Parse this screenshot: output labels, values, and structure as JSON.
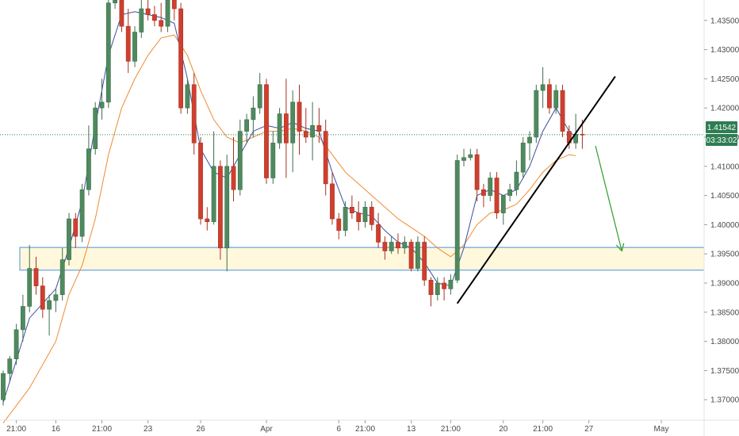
{
  "colors": {
    "up": "#4f8a5f",
    "down": "#cf3f2f",
    "ma_fast": "#3b4fa0",
    "ma_slow": "#f08a30",
    "zone_fill": "#fff8dc",
    "zone_border": "#4a90e2",
    "price_line": "#2e7d52",
    "trendline": "#000000",
    "arrow": "#3aa33a"
  },
  "chart_data": {
    "type": "candlestick",
    "symbol_price_label": "1.41542",
    "countdown_label": "03:33:02",
    "last_price": 1.41542,
    "ylim": [
      1.3665,
      1.4385
    ],
    "yticks": [
      "1.43500",
      "1.43000",
      "1.42500",
      "1.42000",
      "1.41500",
      "1.41000",
      "1.40500",
      "1.40000",
      "1.39500",
      "1.39000",
      "1.38500",
      "1.38000",
      "1.37500",
      "1.37000"
    ],
    "xticks": [
      {
        "label": "21:00",
        "index": 2
      },
      {
        "label": "16",
        "index": 8
      },
      {
        "label": "21:00",
        "index": 15
      },
      {
        "label": "23",
        "index": 22
      },
      {
        "label": "26",
        "index": 30
      },
      {
        "label": "Apr",
        "index": 40
      },
      {
        "label": "6",
        "index": 51
      },
      {
        "label": "21:00",
        "index": 55
      },
      {
        "label": "13",
        "index": 62
      },
      {
        "label": "21:00",
        "index": 68
      },
      {
        "label": "20",
        "index": 76
      },
      {
        "label": "21:00",
        "index": 82
      },
      {
        "label": "27",
        "index": 89
      },
      {
        "label": "May",
        "index": 100
      }
    ],
    "candles": [
      [
        1.37,
        1.375,
        1.369,
        1.3745
      ],
      [
        1.3745,
        1.3775,
        1.373,
        1.377
      ],
      [
        1.377,
        1.383,
        1.376,
        1.382
      ],
      [
        1.382,
        1.388,
        1.38,
        1.386
      ],
      [
        1.386,
        1.3965,
        1.385,
        1.3925
      ],
      [
        1.3925,
        1.3945,
        1.388,
        1.3895
      ],
      [
        1.3895,
        1.391,
        1.384,
        1.3855
      ],
      [
        1.3855,
        1.388,
        1.381,
        1.387
      ],
      [
        1.387,
        1.389,
        1.385,
        1.388
      ],
      [
        1.388,
        1.396,
        1.387,
        1.394
      ],
      [
        1.394,
        1.402,
        1.393,
        1.401
      ],
      [
        1.401,
        1.402,
        1.396,
        1.398
      ],
      [
        1.398,
        1.407,
        1.397,
        1.406
      ],
      [
        1.406,
        1.417,
        1.405,
        1.413
      ],
      [
        1.413,
        1.421,
        1.412,
        1.42
      ],
      [
        1.42,
        1.425,
        1.418,
        1.421
      ],
      [
        1.421,
        1.44,
        1.42,
        1.438
      ],
      [
        1.438,
        1.44,
        1.437,
        1.4385
      ],
      [
        1.4385,
        1.4395,
        1.433,
        1.434
      ],
      [
        1.434,
        1.437,
        1.426,
        1.428
      ],
      [
        1.428,
        1.434,
        1.427,
        1.433
      ],
      [
        1.433,
        1.439,
        1.432,
        1.437
      ],
      [
        1.437,
        1.4395,
        1.435,
        1.436
      ],
      [
        1.436,
        1.4375,
        1.434,
        1.435
      ],
      [
        1.435,
        1.438,
        1.433,
        1.434
      ],
      [
        1.434,
        1.4395,
        1.433,
        1.4385
      ],
      [
        1.4385,
        1.4395,
        1.435,
        1.437
      ],
      [
        1.437,
        1.438,
        1.419,
        1.42
      ],
      [
        1.42,
        1.425,
        1.419,
        1.424
      ],
      [
        1.424,
        1.426,
        1.412,
        1.414
      ],
      [
        1.414,
        1.415,
        1.4,
        1.401
      ],
      [
        1.401,
        1.403,
        1.399,
        1.4005
      ],
      [
        1.4005,
        1.416,
        1.4,
        1.41
      ],
      [
        1.41,
        1.411,
        1.394,
        1.396
      ],
      [
        1.396,
        1.412,
        1.392,
        1.41
      ],
      [
        1.41,
        1.415,
        1.404,
        1.406
      ],
      [
        1.406,
        1.418,
        1.405,
        1.416
      ],
      [
        1.416,
        1.419,
        1.414,
        1.418
      ],
      [
        1.418,
        1.422,
        1.415,
        1.42
      ],
      [
        1.42,
        1.426,
        1.419,
        1.424
      ],
      [
        1.424,
        1.425,
        1.407,
        1.408
      ],
      [
        1.408,
        1.416,
        1.407,
        1.414
      ],
      [
        1.414,
        1.42,
        1.413,
        1.419
      ],
      [
        1.419,
        1.425,
        1.408,
        1.414
      ],
      [
        1.414,
        1.423,
        1.409,
        1.421
      ],
      [
        1.421,
        1.424,
        1.412,
        1.416
      ],
      [
        1.416,
        1.42,
        1.414,
        1.415
      ],
      [
        1.415,
        1.421,
        1.411,
        1.417
      ],
      [
        1.417,
        1.42,
        1.414,
        1.416
      ],
      [
        1.416,
        1.418,
        1.405,
        1.407
      ],
      [
        1.407,
        1.409,
        1.4,
        1.401
      ],
      [
        1.401,
        1.402,
        1.3975,
        1.399
      ],
      [
        1.399,
        1.404,
        1.398,
        1.403
      ],
      [
        1.403,
        1.405,
        1.401,
        1.402
      ],
      [
        1.402,
        1.404,
        1.399,
        1.4005
      ],
      [
        1.4005,
        1.404,
        1.3995,
        1.403
      ],
      [
        1.403,
        1.404,
        1.399,
        1.4
      ],
      [
        1.4,
        1.402,
        1.396,
        1.397
      ],
      [
        1.397,
        1.398,
        1.394,
        1.3955
      ],
      [
        1.3955,
        1.398,
        1.395,
        1.397
      ],
      [
        1.397,
        1.3985,
        1.395,
        1.396
      ],
      [
        1.396,
        1.398,
        1.395,
        1.397
      ],
      [
        1.397,
        1.3975,
        1.392,
        1.3925
      ],
      [
        1.3925,
        1.398,
        1.392,
        1.397
      ],
      [
        1.397,
        1.398,
        1.3895,
        1.3905
      ],
      [
        1.3905,
        1.391,
        1.386,
        1.388
      ],
      [
        1.388,
        1.391,
        1.387,
        1.39
      ],
      [
        1.39,
        1.391,
        1.387,
        1.389
      ],
      [
        1.389,
        1.3915,
        1.388,
        1.3905
      ],
      [
        1.3905,
        1.412,
        1.39,
        1.411
      ],
      [
        1.411,
        1.413,
        1.41,
        1.4115
      ],
      [
        1.4115,
        1.413,
        1.411,
        1.412
      ],
      [
        1.412,
        1.413,
        1.404,
        1.406
      ],
      [
        1.406,
        1.407,
        1.403,
        1.405
      ],
      [
        1.405,
        1.409,
        1.404,
        1.408
      ],
      [
        1.408,
        1.409,
        1.401,
        1.402
      ],
      [
        1.402,
        1.405,
        1.4,
        1.405
      ],
      [
        1.405,
        1.407,
        1.404,
        1.406
      ],
      [
        1.406,
        1.411,
        1.405,
        1.409
      ],
      [
        1.409,
        1.415,
        1.408,
        1.414
      ],
      [
        1.414,
        1.416,
        1.411,
        1.415
      ],
      [
        1.415,
        1.424,
        1.414,
        1.423
      ],
      [
        1.423,
        1.427,
        1.42,
        1.424
      ],
      [
        1.424,
        1.425,
        1.419,
        1.42
      ],
      [
        1.42,
        1.424,
        1.419,
        1.423
      ],
      [
        1.423,
        1.424,
        1.415,
        1.416
      ],
      [
        1.416,
        1.417,
        1.413,
        1.414
      ],
      [
        1.414,
        1.419,
        1.413,
        1.4155
      ],
      [
        1.4155,
        1.418,
        1.413,
        1.4154
      ]
    ],
    "ma_fast": [
      [
        0,
        1.3695
      ],
      [
        4,
        1.384
      ],
      [
        8,
        1.389
      ],
      [
        10,
        1.396
      ],
      [
        12,
        1.404
      ],
      [
        14,
        1.417
      ],
      [
        16,
        1.429
      ],
      [
        18,
        1.436
      ],
      [
        20,
        1.4365
      ],
      [
        22,
        1.436
      ],
      [
        24,
        1.4355
      ],
      [
        26,
        1.4345
      ],
      [
        28,
        1.425
      ],
      [
        30,
        1.413
      ],
      [
        32,
        1.409
      ],
      [
        34,
        1.408
      ],
      [
        36,
        1.412
      ],
      [
        38,
        1.416
      ],
      [
        40,
        1.417
      ],
      [
        42,
        1.4165
      ],
      [
        44,
        1.4175
      ],
      [
        46,
        1.4165
      ],
      [
        48,
        1.416
      ],
      [
        50,
        1.409
      ],
      [
        52,
        1.403
      ],
      [
        54,
        1.402
      ],
      [
        56,
        1.4015
      ],
      [
        58,
        1.399
      ],
      [
        60,
        1.397
      ],
      [
        62,
        1.396
      ],
      [
        64,
        1.3935
      ],
      [
        66,
        1.39
      ],
      [
        68,
        1.3895
      ],
      [
        70,
        1.396
      ],
      [
        72,
        1.405
      ],
      [
        74,
        1.406
      ],
      [
        76,
        1.405
      ],
      [
        78,
        1.406
      ],
      [
        80,
        1.41
      ],
      [
        82,
        1.416
      ],
      [
        84,
        1.42
      ],
      [
        86,
        1.416
      ],
      [
        87,
        1.415
      ]
    ],
    "ma_slow": [
      [
        0,
        1.366
      ],
      [
        4,
        1.372
      ],
      [
        8,
        1.38
      ],
      [
        10,
        1.388
      ],
      [
        12,
        1.393
      ],
      [
        14,
        1.401
      ],
      [
        16,
        1.412
      ],
      [
        18,
        1.42
      ],
      [
        20,
        1.425
      ],
      [
        22,
        1.429
      ],
      [
        24,
        1.432
      ],
      [
        26,
        1.4325
      ],
      [
        28,
        1.429
      ],
      [
        30,
        1.423
      ],
      [
        32,
        1.418
      ],
      [
        34,
        1.415
      ],
      [
        36,
        1.414
      ],
      [
        38,
        1.415
      ],
      [
        40,
        1.416
      ],
      [
        42,
        1.416
      ],
      [
        44,
        1.4165
      ],
      [
        46,
        1.416
      ],
      [
        48,
        1.415
      ],
      [
        50,
        1.412
      ],
      [
        52,
        1.409
      ],
      [
        54,
        1.407
      ],
      [
        56,
        1.405
      ],
      [
        58,
        1.403
      ],
      [
        60,
        1.401
      ],
      [
        62,
        1.3995
      ],
      [
        64,
        1.398
      ],
      [
        66,
        1.396
      ],
      [
        68,
        1.3945
      ],
      [
        70,
        1.3965
      ],
      [
        72,
        1.4
      ],
      [
        74,
        1.402
      ],
      [
        76,
        1.4025
      ],
      [
        78,
        1.4035
      ],
      [
        80,
        1.406
      ],
      [
        82,
        1.409
      ],
      [
        84,
        1.411
      ],
      [
        86,
        1.412
      ],
      [
        87,
        1.4118
      ]
    ],
    "support_zone": [
      1.3922,
      1.3961
    ],
    "trendline": [
      [
        69,
        1.3865
      ],
      [
        93,
        1.4254
      ]
    ],
    "projection_arrow": [
      [
        90,
        1.4135
      ],
      [
        94,
        1.3955
      ]
    ]
  }
}
